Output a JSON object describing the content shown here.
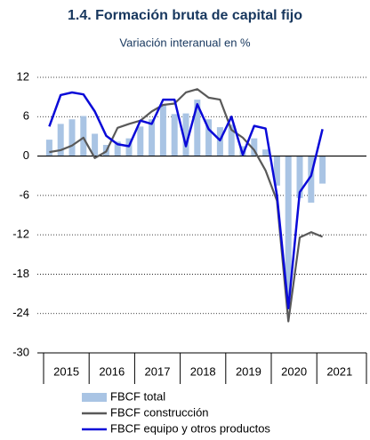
{
  "chart_data": {
    "type": "combo",
    "title": "1.4. Formación bruta de capital fijo",
    "subtitle": "Variación interanual en %",
    "categories": [
      null,
      null,
      null,
      null,
      null,
      null,
      null,
      null,
      null,
      null,
      null,
      null,
      null,
      null,
      null,
      null,
      null,
      null,
      null,
      null,
      null,
      null,
      null,
      null,
      null
    ],
    "x_groups": [
      "2015",
      "2016",
      "2017",
      "2018",
      "2019",
      "2020",
      "2021"
    ],
    "ylim": [
      -30,
      12
    ],
    "yticks": [
      12,
      6,
      0,
      -6,
      -12,
      -18,
      -24,
      -30
    ],
    "grid": true,
    "series": [
      {
        "name": "FBCF total",
        "kind": "bar",
        "color": "#a9c4e4",
        "values": [
          2.5,
          4.9,
          5.6,
          6.1,
          3.4,
          1.7,
          2.2,
          2.7,
          4.5,
          5.6,
          7.8,
          6.4,
          6.5,
          8.6,
          5.6,
          4.4,
          4.8,
          1.5,
          2.7,
          1.0,
          -4.5,
          -21.5,
          -6.4,
          -7.1,
          -4.2
        ]
      },
      {
        "name": "FBCF construcción",
        "kind": "line",
        "color": "#595959",
        "values": [
          0.6,
          0.9,
          1.6,
          2.8,
          -0.3,
          0.7,
          4.3,
          4.9,
          5.4,
          6.8,
          7.8,
          8.0,
          9.7,
          10.2,
          8.9,
          8.6,
          4.0,
          2.8,
          0.9,
          -2.2,
          -6.8,
          -25.2,
          -12.4,
          -11.6,
          -12.3
        ]
      },
      {
        "name": "FBCF equipo y otros productos",
        "kind": "line",
        "color": "#0a0ad8",
        "values": [
          4.5,
          9.3,
          9.7,
          9.4,
          6.8,
          3.1,
          1.8,
          1.5,
          5.4,
          4.9,
          8.6,
          8.6,
          1.5,
          7.9,
          4.1,
          2.4,
          6.0,
          0.2,
          4.6,
          4.2,
          -6.0,
          -23.2,
          -5.5,
          -3.0,
          4.1
        ]
      }
    ]
  }
}
